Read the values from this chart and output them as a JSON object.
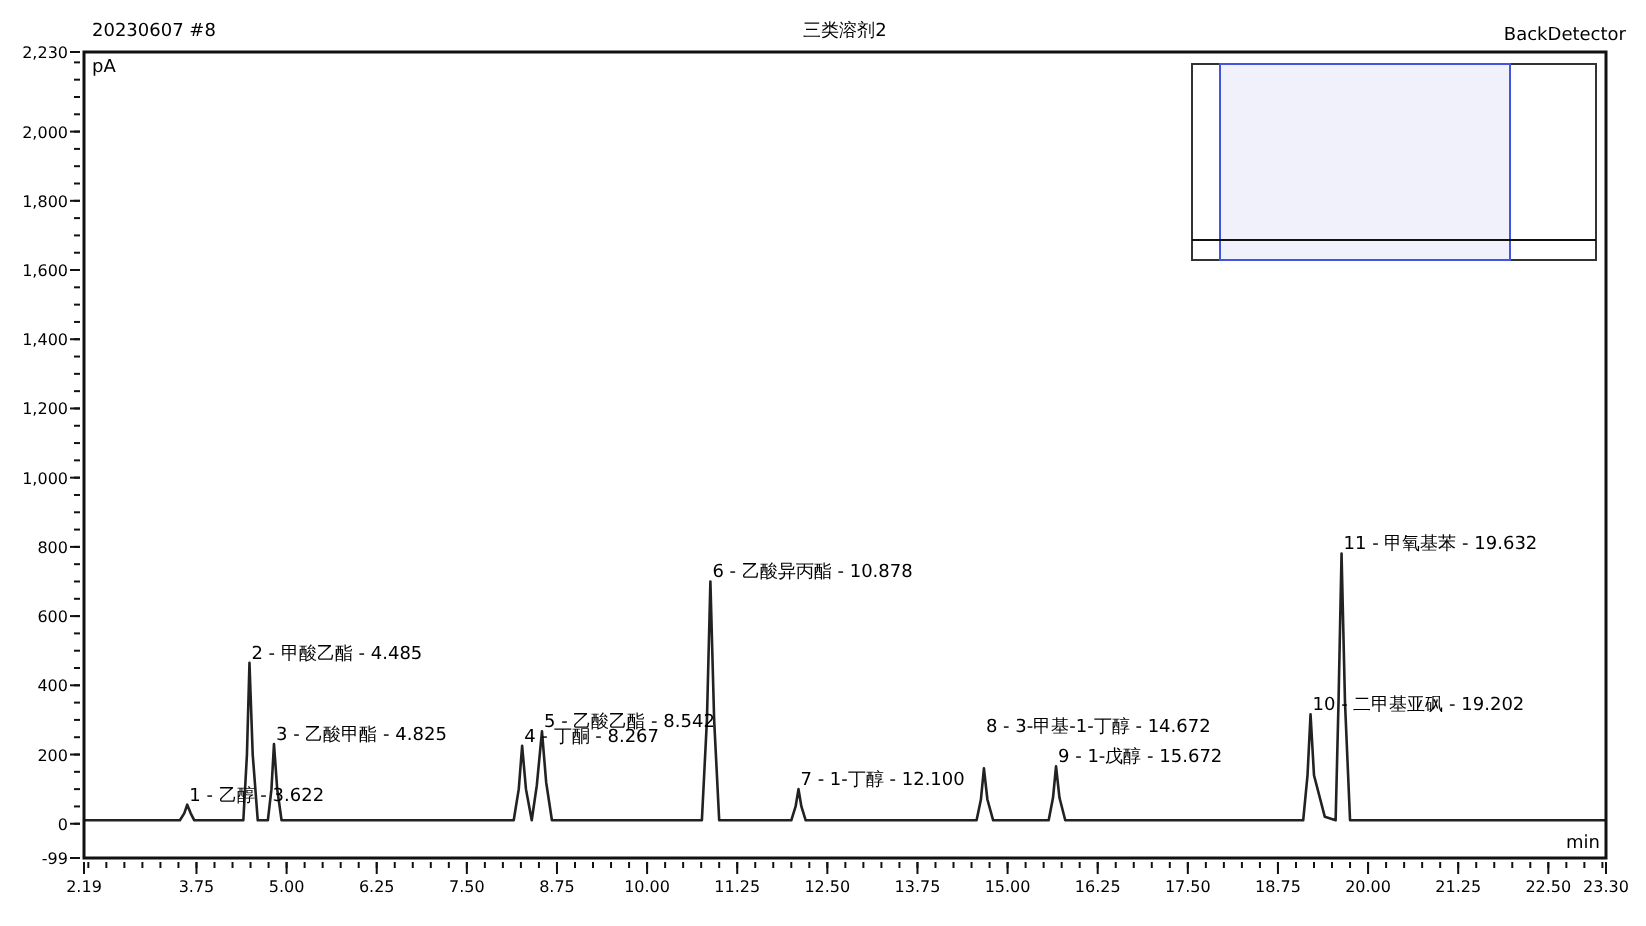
{
  "chart_data": {
    "type": "line",
    "title": "三类溶剂2",
    "subtitle": "20230607 #8",
    "xlabel": "min",
    "ylabel": "pA",
    "x": [
      2.19,
      3.52,
      3.58,
      3.622,
      3.67,
      3.72,
      4.4,
      4.45,
      4.485,
      4.53,
      4.6,
      4.74,
      4.79,
      4.825,
      4.87,
      4.93,
      8.15,
      8.22,
      8.267,
      8.32,
      8.4,
      8.47,
      8.542,
      8.6,
      8.68,
      10.76,
      10.83,
      10.878,
      10.93,
      11.0,
      12.0,
      12.06,
      12.1,
      12.14,
      12.2,
      14.57,
      14.63,
      14.672,
      14.72,
      14.8,
      15.57,
      15.63,
      15.672,
      15.72,
      15.8,
      19.1,
      19.16,
      19.202,
      19.25,
      19.4,
      19.55,
      19.59,
      19.632,
      19.68,
      19.75,
      23.3
    ],
    "series": [
      {
        "color": "#222222",
        "values": [
          10,
          10,
          30,
          55,
          30,
          10,
          10,
          200,
          465,
          200,
          10,
          10,
          100,
          230,
          100,
          10,
          10,
          100,
          225,
          100,
          10,
          110,
          267,
          120,
          10,
          10,
          300,
          700,
          300,
          10,
          10,
          50,
          100,
          50,
          10,
          10,
          70,
          160,
          70,
          10,
          10,
          75,
          166,
          75,
          10,
          10,
          140,
          316,
          140,
          20,
          10,
          350,
          781,
          350,
          10,
          10
        ]
      }
    ],
    "xlim": [
      2.19,
      23.3
    ],
    "xticks": [
      2.19,
      3.75,
      {
        "value": 5,
        "label": "5.00"
      },
      6.25,
      {
        "value": 7.5,
        "label": "7.50"
      },
      8.75,
      {
        "value": 10,
        "label": "10.00"
      },
      11.25,
      {
        "value": 12.5,
        "label": "12.50"
      },
      13.75,
      {
        "value": 15,
        "label": "15.00"
      },
      16.25,
      {
        "value": 17.5,
        "label": "17.50"
      },
      18.75,
      {
        "value": 20,
        "label": "20.00"
      },
      21.25,
      {
        "value": 22.5,
        "label": "22.50"
      },
      {
        "value": 23.3,
        "label": "23.30"
      }
    ],
    "ylim": [
      -99,
      2230
    ],
    "yticks": [
      -99,
      0,
      200,
      400,
      600,
      800,
      {
        "value": 1000,
        "label": "1,000"
      },
      {
        "value": 1200,
        "label": "1,200"
      },
      {
        "value": 1400,
        "label": "1,400"
      },
      {
        "value": 1600,
        "label": "1,600"
      },
      {
        "value": 1800,
        "label": "1,800"
      },
      {
        "value": 2000,
        "label": "2,000"
      },
      {
        "value": 2230,
        "label": "2,230"
      }
    ],
    "grid": false,
    "marker": "none",
    "line_style": "solid",
    "annotations": [
      "BackDetector",
      {
        "text": "1 - 乙醇 - 3.622",
        "x": 3.622,
        "y": 55
      },
      {
        "text": "2 - 甲酸乙酯 - 4.485",
        "x": 4.485,
        "y": 465
      },
      {
        "text": "3 - 乙酸甲酯 - 4.825",
        "x": 4.825,
        "y": 230
      },
      {
        "text": "4 - 丁酮 - 8.267",
        "x": 8.267,
        "y": 225
      },
      {
        "text": "5 - 乙酸乙酯 - 8.542",
        "x": 8.542,
        "y": 267
      },
      {
        "text": "6 - 乙酸异丙酯 - 10.878",
        "x": 10.878,
        "y": 700
      },
      {
        "text": "7 - 1-丁醇 - 12.100",
        "x": 12.1,
        "y": 100
      },
      {
        "text": "8 - 3-甲基-1-丁醇 - 14.672",
        "x": 14.672,
        "y": 160
      },
      {
        "text": "9 - 1-戊醇 - 15.672",
        "x": 15.672,
        "y": 166
      },
      {
        "text": "10 - 二甲基亚砜 - 19.202",
        "x": 19.202,
        "y": 316
      },
      {
        "text": "11 - 甲氧基苯 - 19.632",
        "x": 19.632,
        "y": 781
      }
    ]
  }
}
